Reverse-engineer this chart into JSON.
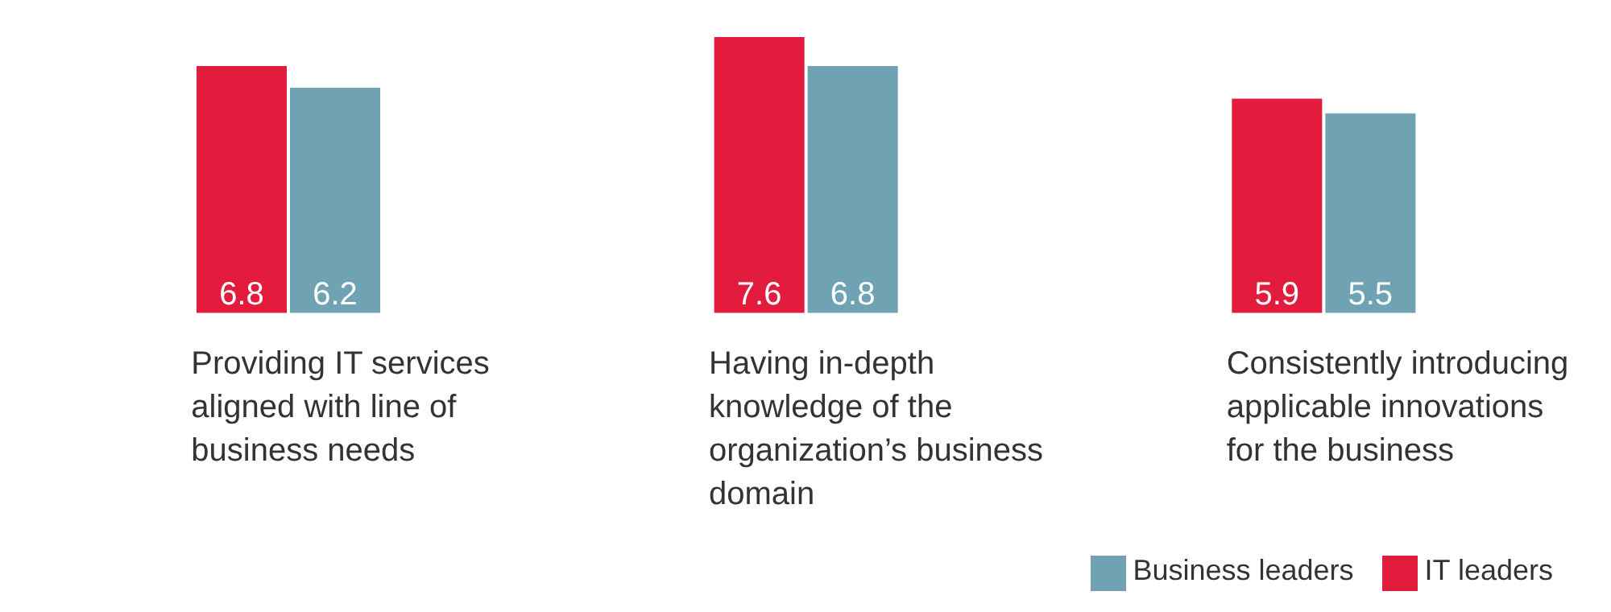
{
  "chart_data": {
    "type": "bar",
    "categories": [
      "Providing IT services aligned with line of business needs",
      "Having in-depth knowledge of the organization’s business domain",
      "Consistently introducing applicable innovations for the business"
    ],
    "series": [
      {
        "name": "IT leaders",
        "color": "#e31b3d",
        "values": [
          6.8,
          7.6,
          5.9
        ]
      },
      {
        "name": "Business leaders",
        "color": "#6fa3b4",
        "values": [
          6.2,
          6.8,
          5.5
        ]
      }
    ],
    "data_labels": true,
    "legend": "bottom right",
    "grid": false
  }
}
